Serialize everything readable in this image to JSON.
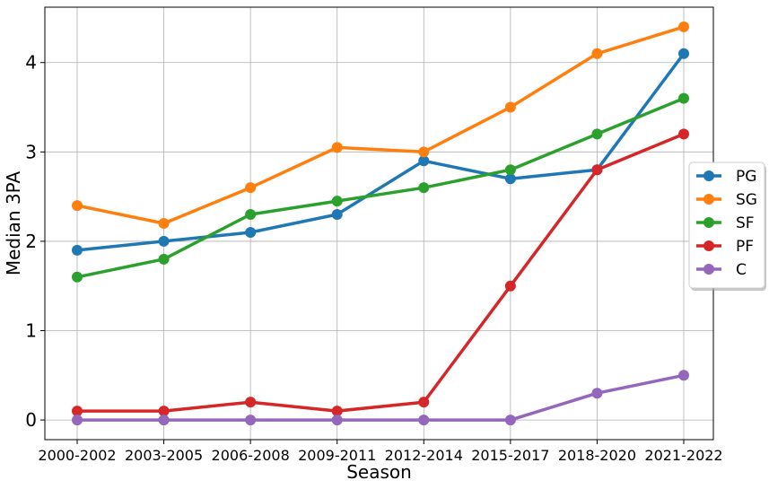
{
  "chart_data": {
    "type": "line",
    "title": "",
    "xlabel": "Season",
    "ylabel": "Median 3PA",
    "categories": [
      "2000-2002",
      "2003-2005",
      "2006-2008",
      "2009-2011",
      "2012-2014",
      "2015-2017",
      "2018-2020",
      "2021-2022"
    ],
    "yticks": [
      "0",
      "1",
      "2",
      "3",
      "4"
    ],
    "ylim": [
      -0.22,
      4.62
    ],
    "grid": true,
    "legend_position": "center-right",
    "series": [
      {
        "name": "PG",
        "color": "#1f77b4",
        "values": [
          1.9,
          2.0,
          2.1,
          2.3,
          2.9,
          2.7,
          2.8,
          4.1
        ]
      },
      {
        "name": "SG",
        "color": "#ff7f0e",
        "values": [
          2.4,
          2.2,
          2.6,
          3.05,
          3.0,
          3.5,
          4.1,
          4.4
        ]
      },
      {
        "name": "SF",
        "color": "#2ca02c",
        "values": [
          1.6,
          1.8,
          2.3,
          2.45,
          2.6,
          2.8,
          3.2,
          3.6
        ]
      },
      {
        "name": "PF",
        "color": "#d62728",
        "values": [
          0.1,
          0.1,
          0.2,
          0.1,
          0.2,
          1.5,
          2.8,
          3.2
        ]
      },
      {
        "name": "C",
        "color": "#9467bd",
        "values": [
          0.0,
          0.0,
          0.0,
          0.0,
          0.0,
          0.0,
          0.3,
          0.5
        ]
      }
    ]
  }
}
